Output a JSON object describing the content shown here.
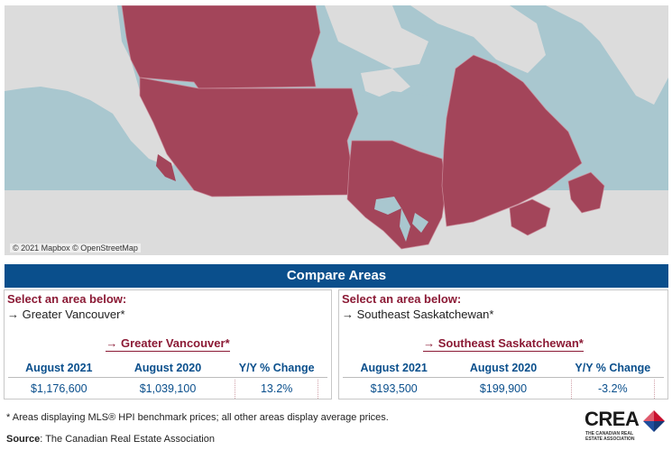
{
  "map": {
    "credit": "© 2021 Mapbox © OpenStreetMap",
    "colors": {
      "water": "#a9c7cf",
      "land": "#dcdcdc",
      "selected": "#a3455a"
    }
  },
  "compare": {
    "title": "Compare Areas"
  },
  "panels": [
    {
      "prompt": "Select an area below:",
      "selected": "→ Greater Vancouver*",
      "area_link": "→ Greater Vancouver*",
      "headers": [
        "August 2021",
        "August 2020",
        "Y/Y % Change"
      ],
      "values": [
        "$1,176,600",
        "$1,039,100",
        "13.2%"
      ]
    },
    {
      "prompt": "Select an area below:",
      "selected": "→ Southeast Saskatchewan*",
      "area_link": "→ Southeast Saskatchewan*",
      "headers": [
        "August 2021",
        "August 2020",
        "Y/Y % Change"
      ],
      "values": [
        "$193,500",
        "$199,900",
        "-3.2%"
      ]
    }
  ],
  "footnote": "* Areas displaying MLS® HPI benchmark prices; all other areas display average prices.",
  "source": {
    "label": "Source",
    "text": ": The Canadian Real Estate Association"
  },
  "logo": {
    "word": "CREA",
    "tagline": "THE CANADIAN REAL ESTATE ASSOCIATION",
    "colors": {
      "red": "#c8102e",
      "blue": "#1f4e9c",
      "dark": "#1a1a1a"
    }
  }
}
